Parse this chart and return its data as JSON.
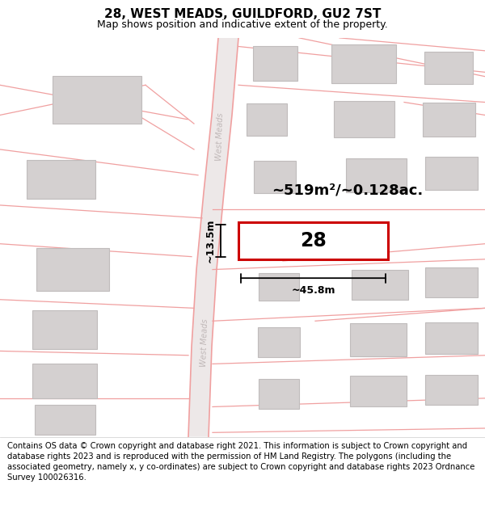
{
  "title": "28, WEST MEADS, GUILDFORD, GU2 7ST",
  "subtitle": "Map shows position and indicative extent of the property.",
  "footer": "Contains OS data © Crown copyright and database right 2021. This information is subject to Crown copyright and database rights 2023 and is reproduced with the permission of HM Land Registry. The polygons (including the associated geometry, namely x, y co-ordinates) are subject to Crown copyright and database rights 2023 Ordnance Survey 100026316.",
  "map_bg": "#f2f0f0",
  "road_color": "#f0a0a0",
  "road_fill": "#ede8e8",
  "building_fill": "#d4d0d0",
  "building_outline": "#c0bcbc",
  "highlight_fill": "#ffffff",
  "highlight_outline": "#cc0000",
  "area_text": "~519m²/~0.128ac.",
  "label_28": "28",
  "dim_width": "~45.8m",
  "dim_height": "~13.5m",
  "title_fontsize": 11,
  "subtitle_fontsize": 9,
  "footer_fontsize": 7.2,
  "road_label_color": "#c0b8b8",
  "road_label_size": 7
}
